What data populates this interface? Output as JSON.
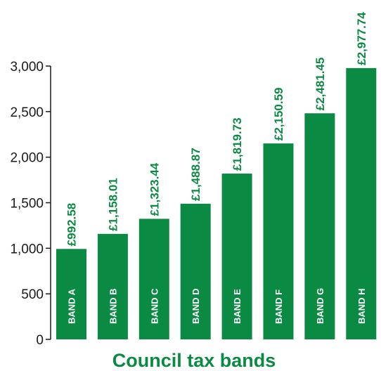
{
  "chart_data": {
    "type": "bar",
    "title": "",
    "xlabel": "Council tax bands",
    "ylabel": "",
    "ylim": [
      0,
      3000
    ],
    "yticks": [
      0,
      500,
      1000,
      1500,
      2000,
      2500,
      3000
    ],
    "ytick_labels": [
      "0",
      "500",
      "1,000",
      "1,500",
      "2,000",
      "2,500",
      "3,000"
    ],
    "grid": false,
    "legend": "none",
    "categories": [
      "BAND A",
      "BAND B",
      "BAND C",
      "BAND D",
      "BAND E",
      "BAND F",
      "BAND G",
      "BAND H"
    ],
    "values": [
      992.58,
      1158.01,
      1323.44,
      1488.87,
      1819.73,
      2150.59,
      2481.45,
      2977.74
    ],
    "value_labels": [
      "£992.58",
      "£1,158.01",
      "£1,323.44",
      "£1,488.87",
      "£1,819.73",
      "£2,150.59",
      "£2,481.45",
      "£2,977.74"
    ],
    "bar_color": "#0b8a43",
    "axis_color": "#1a1a1a"
  }
}
